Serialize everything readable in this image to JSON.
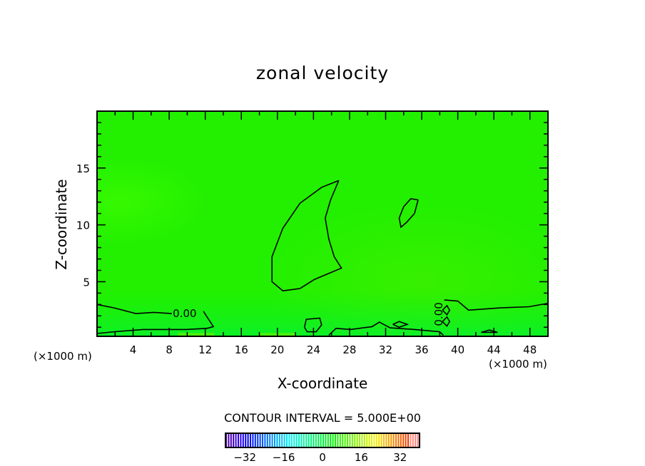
{
  "chart_data": {
    "type": "contour",
    "title": "zonal velocity",
    "xlabel": "X-coordinate",
    "ylabel": "Z-coordinate",
    "x_unit_label": "(×1000 m)",
    "xlim": [
      0,
      50
    ],
    "ylim": [
      0.2,
      20
    ],
    "xticks": [
      4,
      8,
      12,
      16,
      20,
      24,
      28,
      32,
      36,
      40,
      44,
      48
    ],
    "xtick_labels": [
      "4",
      "8",
      "12",
      "16",
      "20",
      "24",
      "28",
      "32",
      "36",
      "40",
      "44",
      "48"
    ],
    "yticks": [
      5,
      10,
      15
    ],
    "ytick_labels": [
      "5",
      "10",
      "15"
    ],
    "contour_interval_text": "CONTOUR INTERVAL = 5.000E+00",
    "contour_label": "0.00",
    "colorbar": {
      "range": [
        -40,
        40
      ],
      "ticks": [
        -32,
        -16,
        0,
        16,
        32
      ],
      "tick_labels": [
        "−32",
        "−16",
        "0",
        "16",
        "32"
      ]
    },
    "field_background_color": "#22f000",
    "contours_zero": [
      {
        "name": "crescent",
        "points": [
          [
            26.8,
            13.9
          ],
          [
            24.9,
            13.3
          ],
          [
            22.5,
            11.9
          ],
          [
            20.6,
            9.7
          ],
          [
            19.4,
            7.2
          ],
          [
            19.4,
            5.0
          ],
          [
            20.6,
            4.2
          ],
          [
            22.5,
            4.4
          ],
          [
            24.1,
            5.2
          ],
          [
            25.9,
            5.8
          ],
          [
            27.1,
            6.2
          ],
          [
            26.3,
            7.2
          ],
          [
            25.7,
            8.75
          ],
          [
            25.3,
            10.6
          ],
          [
            25.9,
            12.2
          ],
          [
            26.8,
            13.9
          ]
        ]
      },
      {
        "name": "oval",
        "points": [
          [
            35.6,
            12.2
          ],
          [
            34.8,
            12.3
          ],
          [
            34.0,
            11.6
          ],
          [
            33.5,
            10.6
          ],
          [
            33.7,
            9.8
          ],
          [
            34.3,
            10.2
          ],
          [
            35.2,
            11.0
          ],
          [
            35.6,
            12.2
          ]
        ]
      },
      {
        "name": "lower-left",
        "points": [
          [
            0,
            3.0
          ],
          [
            1.9,
            2.7
          ],
          [
            4.3,
            2.2
          ],
          [
            6.3,
            2.3
          ],
          [
            8.3,
            2.2
          ]
        ]
      },
      {
        "name": "lower-left-2",
        "points": [
          [
            11.8,
            2.4
          ],
          [
            12.2,
            1.9
          ],
          [
            12.9,
            1.05
          ],
          [
            12.2,
            0.9
          ],
          [
            9.9,
            0.8
          ],
          [
            5.1,
            0.8
          ],
          [
            1.9,
            0.6
          ],
          [
            0,
            0.45
          ]
        ]
      },
      {
        "name": "lower-right",
        "points": [
          [
            38.5,
            3.4
          ],
          [
            40.0,
            3.3
          ],
          [
            41.2,
            2.5
          ],
          [
            44.7,
            2.7
          ],
          [
            47.9,
            2.8
          ],
          [
            50,
            3.1
          ]
        ]
      },
      {
        "name": "lower-mid",
        "points": [
          [
            25.7,
            0.3
          ],
          [
            26.5,
            0.9
          ],
          [
            28.1,
            0.8
          ],
          [
            30.5,
            1.05
          ],
          [
            31.3,
            1.45
          ],
          [
            32.5,
            0.95
          ],
          [
            35.2,
            0.8
          ],
          [
            38.0,
            0.6
          ],
          [
            38.4,
            0.3
          ]
        ]
      },
      {
        "name": "blob-24",
        "points": [
          [
            23.0,
            1.0
          ],
          [
            23.2,
            1.7
          ],
          [
            24.7,
            1.8
          ],
          [
            24.9,
            1.2
          ],
          [
            24.3,
            0.6
          ],
          [
            23.3,
            0.6
          ],
          [
            23.0,
            1.0
          ]
        ]
      },
      {
        "name": "col-39a",
        "points": [
          [
            38.3,
            2.5
          ],
          [
            38.8,
            2.9
          ],
          [
            39.1,
            2.5
          ],
          [
            38.8,
            2.1
          ],
          [
            38.3,
            2.5
          ]
        ]
      },
      {
        "name": "col-39b",
        "points": [
          [
            38.3,
            1.5
          ],
          [
            38.8,
            1.9
          ],
          [
            39.1,
            1.5
          ],
          [
            38.8,
            1.1
          ],
          [
            38.3,
            1.5
          ]
        ]
      },
      {
        "name": "small-33",
        "points": [
          [
            32.8,
            1.25
          ],
          [
            33.5,
            1.5
          ],
          [
            34.4,
            1.25
          ],
          [
            33.5,
            1.0
          ],
          [
            32.8,
            1.25
          ]
        ]
      },
      {
        "name": "small-44",
        "points": [
          [
            42.6,
            0.55
          ],
          [
            43.5,
            0.75
          ],
          [
            44.4,
            0.55
          ],
          [
            42.6,
            0.55
          ]
        ]
      }
    ]
  }
}
